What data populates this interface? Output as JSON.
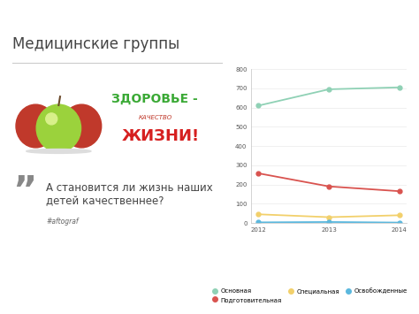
{
  "chart_data": {
    "type": "line",
    "title": "Медицинские группы",
    "annotations": [
      "ЗДОРОВЬЕ -",
      "КАЧЕСТВО",
      "ЖИЗНИ!",
      "”",
      "А становится ли жизнь наших\nдетей качественнее?",
      "#aftograf"
    ],
    "x": [
      2012,
      2013,
      2014
    ],
    "xlim": [
      2011.9,
      2014.1
    ],
    "xticks": [
      2012,
      2013,
      2014
    ],
    "ylim": [
      0,
      800
    ],
    "yticks": [
      0,
      100,
      200,
      300,
      400,
      500,
      600,
      700,
      800
    ],
    "grid": true,
    "legend": "lower right",
    "marker": "circle",
    "series": [
      {
        "name": "Основная",
        "color": "#8fd1b5",
        "values": [
          610,
          695,
          705
        ]
      },
      {
        "name": "Подготовительная",
        "color": "#d9534f",
        "values": [
          258,
          190,
          165
        ]
      },
      {
        "name": "Специальная",
        "color": "#f2d06b",
        "values": [
          45,
          30,
          40
        ]
      },
      {
        "name": "Освобожденные",
        "color": "#5bb8de",
        "values": [
          3,
          5,
          2
        ]
      }
    ]
  }
}
